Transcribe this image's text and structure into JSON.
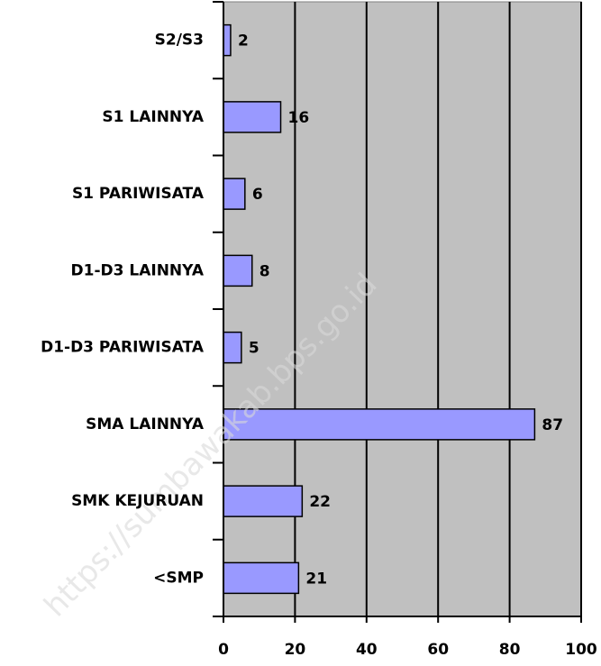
{
  "watermark": "https://sumbawakab.bps.go.id",
  "chart_data": {
    "type": "barh",
    "categories": [
      "S2/S3",
      "S1 LAINNYA",
      "S1 PARIWISATA",
      "D1-D3 LAINNYA",
      "D1-D3 PARIWISATA",
      "SMA LAINNYA",
      "SMK KEJURUAN",
      "<SMP"
    ],
    "values": [
      2,
      16,
      6,
      8,
      5,
      87,
      22,
      21
    ],
    "color": "#9999ff",
    "xlim": [
      0,
      100
    ],
    "xticks": [
      0,
      20,
      40,
      60,
      80,
      100
    ],
    "grid": true
  }
}
